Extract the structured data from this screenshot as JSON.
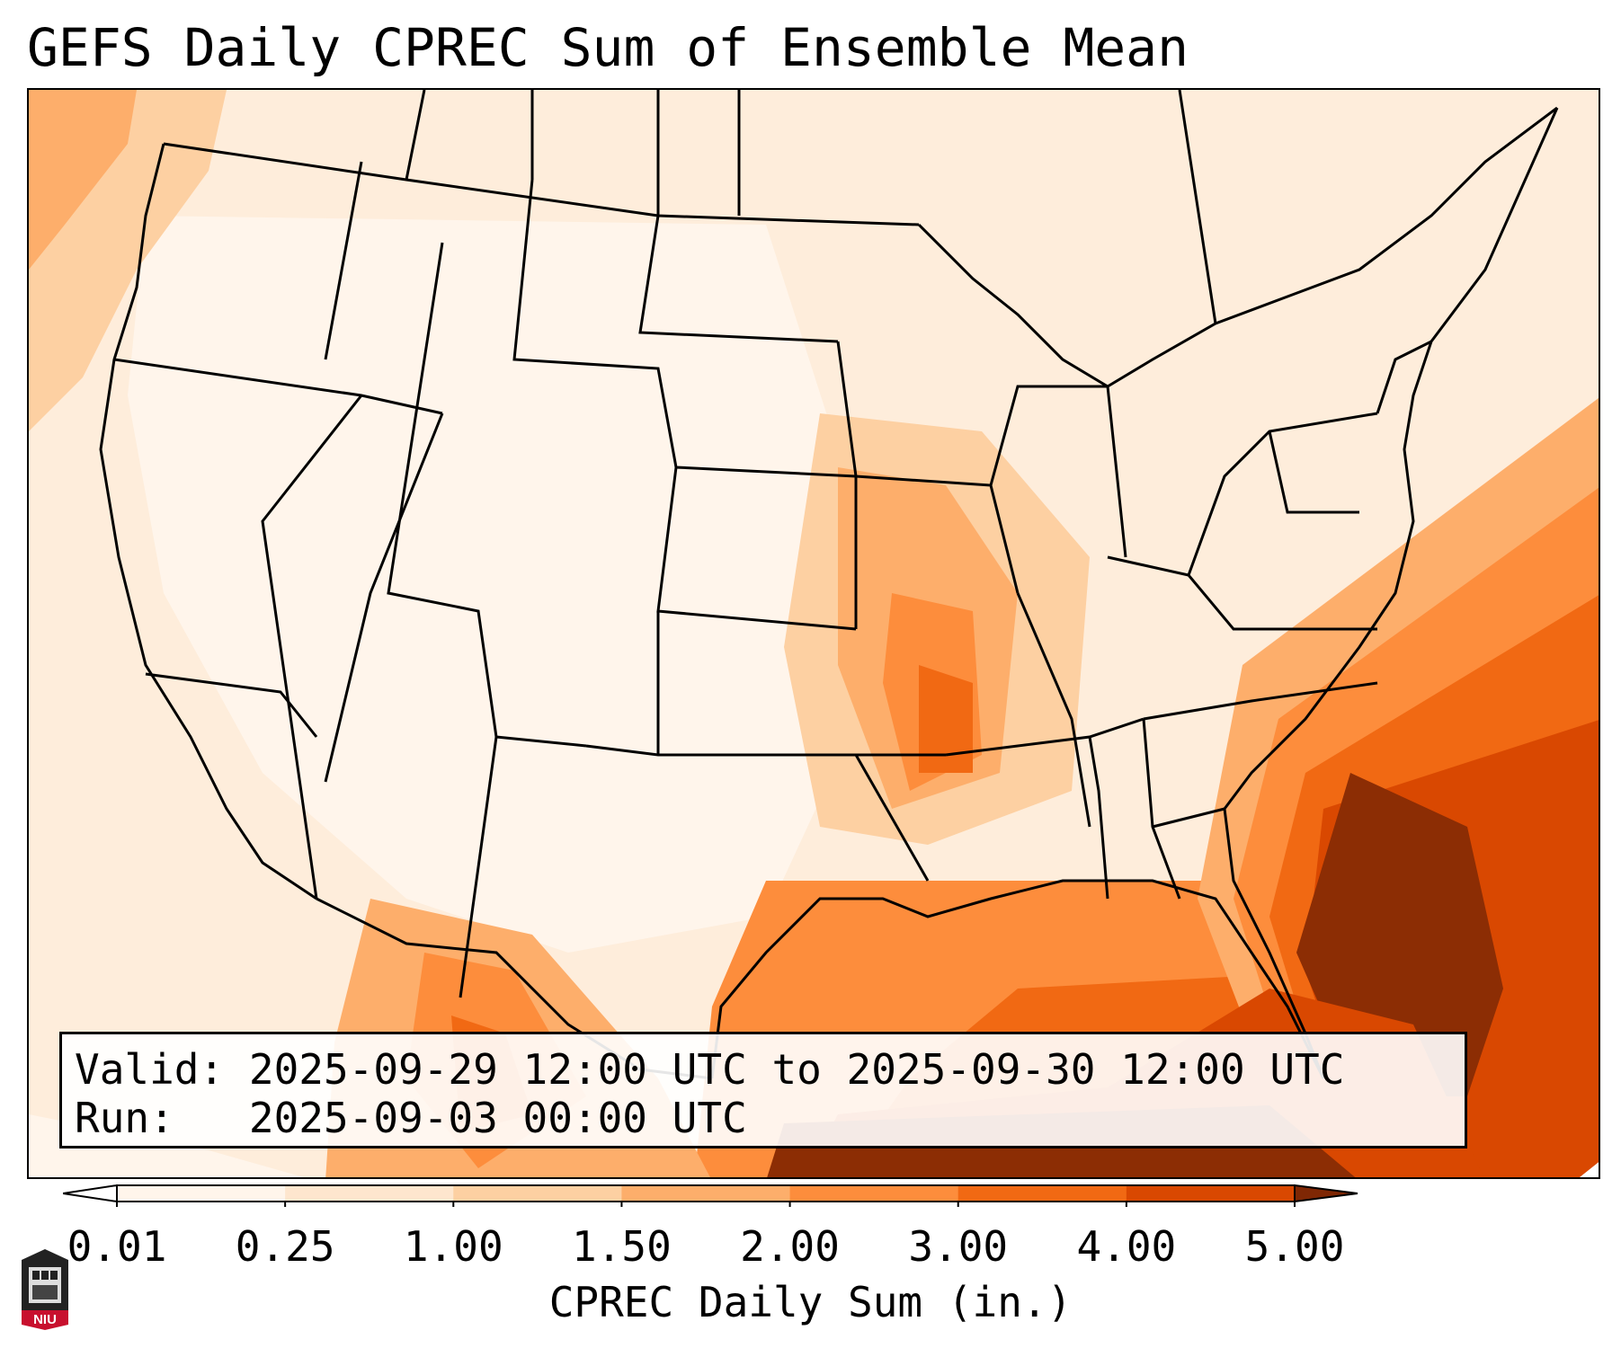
{
  "title": "GEFS Daily CPREC Sum of Ensemble Mean",
  "info": {
    "valid_label": "Valid:",
    "valid_value": "2025-09-29 12:00 UTC to 2025-09-30 12:00 UTC",
    "run_label": "Run:",
    "run_value": "2025-09-03 00:00 UTC"
  },
  "colorbar": {
    "title": "CPREC Daily Sum (in.)",
    "ticks": [
      "0.01",
      "0.25",
      "1.00",
      "1.50",
      "2.00",
      "3.00",
      "4.00",
      "5.00"
    ],
    "colors": [
      "#fff5eb",
      "#fee6ce",
      "#fdd0a2",
      "#fdae6b",
      "#fd8d3c",
      "#f16913",
      "#d94801",
      "#8c2d04"
    ],
    "under_color": "#ffffff",
    "over_color": "#7f2704"
  },
  "logo": {
    "text": "NIU",
    "color": "#c8102e"
  }
}
